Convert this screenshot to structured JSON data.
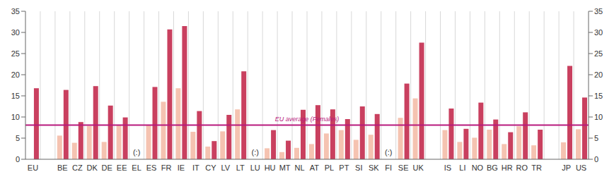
{
  "chart_data": {
    "type": "bar",
    "categories": [
      "EU",
      null,
      "BE",
      "CZ",
      "DK",
      "DE",
      "EE",
      "EL",
      "ES",
      "FR",
      "IE",
      "IT",
      "CY",
      "LV",
      "LT",
      "LU",
      "HU",
      "MT",
      "NL",
      "AT",
      "PL",
      "PT",
      "SI",
      "SK",
      "FI",
      "SE",
      "UK",
      null,
      "IS",
      "LI",
      "NO",
      "BG",
      "HR",
      "RO",
      "TR",
      null,
      "JP",
      "US"
    ],
    "series": [
      {
        "color": "#f5c3b1",
        "values": [
          null,
          null,
          5.6,
          3.9,
          7.9,
          4.1,
          8.0,
          null,
          8.0,
          13.6,
          16.8,
          6.5,
          3.0,
          6.6,
          11.8,
          null,
          2.6,
          1.7,
          2.7,
          3.6,
          6.1,
          6.9,
          4.6,
          5.8,
          null,
          9.8,
          14.4,
          null,
          6.9,
          4.1,
          5.1,
          7.0,
          3.6,
          7.8,
          3.3,
          null,
          4.0,
          7.1
        ]
      },
      {
        "color": "#c9405f",
        "values": [
          16.8,
          null,
          16.4,
          8.8,
          17.3,
          12.7,
          9.9,
          null,
          17.1,
          30.7,
          31.5,
          11.4,
          4.3,
          10.5,
          20.8,
          null,
          6.9,
          4.4,
          11.7,
          12.8,
          11.8,
          9.5,
          12.5,
          10.7,
          null,
          17.9,
          27.6,
          null,
          12.0,
          7.2,
          13.4,
          9.4,
          6.4,
          11.1,
          7.0,
          null,
          22.1,
          14.6
        ]
      }
    ],
    "ylim": [
      0,
      35
    ],
    "yticks": [
      0,
      5,
      10,
      15,
      20,
      25,
      30,
      35
    ],
    "grid": true,
    "annotations": [
      {
        "type": "hline",
        "value": 8.1,
        "text": "EU average (Females)",
        "color": "#b8197c"
      },
      {
        "type": "text",
        "category": "EL",
        "text": "(:)"
      },
      {
        "type": "text",
        "category": "LU",
        "text": "(:)"
      },
      {
        "type": "text",
        "category": "FI",
        "text": "(:)"
      }
    ]
  }
}
